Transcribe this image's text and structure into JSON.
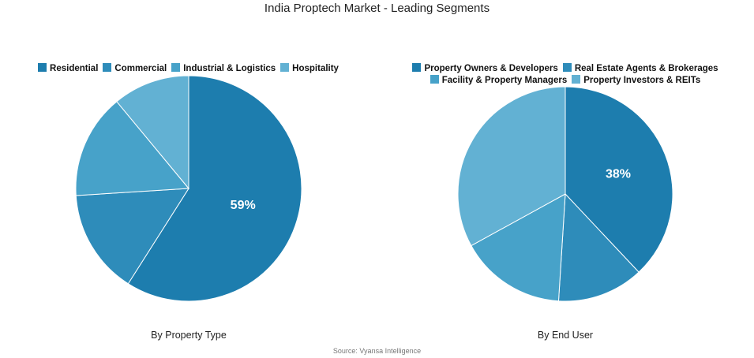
{
  "title": "India Proptech Market - Leading Segments",
  "source": "Source: Vyansa Intelligence",
  "chart_data": [
    {
      "type": "pie",
      "subtitle": "By Property Type",
      "categories": [
        "Residential",
        "Commercial",
        "Industrial & Logistics",
        "Hospitality"
      ],
      "values": [
        59,
        15,
        15,
        11
      ],
      "colors": [
        "#1d7dae",
        "#2e8cba",
        "#47a2c9",
        "#62b1d3"
      ],
      "data_labels": [
        "59%",
        "",
        "",
        ""
      ],
      "legend_rows": [
        [
          0,
          1,
          2,
          3
        ]
      ],
      "legend_position": "top"
    },
    {
      "type": "pie",
      "subtitle": "By End User",
      "categories": [
        "Property Owners & Developers",
        "Real Estate Agents & Brokerages",
        "Facility & Property Managers",
        "Property Investors & REITs"
      ],
      "values": [
        38,
        13,
        16,
        33
      ],
      "colors": [
        "#1d7dae",
        "#2e8cba",
        "#47a2c9",
        "#62b1d3"
      ],
      "data_labels": [
        "38%",
        "",
        "",
        ""
      ],
      "legend_rows": [
        [
          0,
          1
        ],
        [
          2,
          3
        ]
      ],
      "legend_position": "top"
    }
  ]
}
